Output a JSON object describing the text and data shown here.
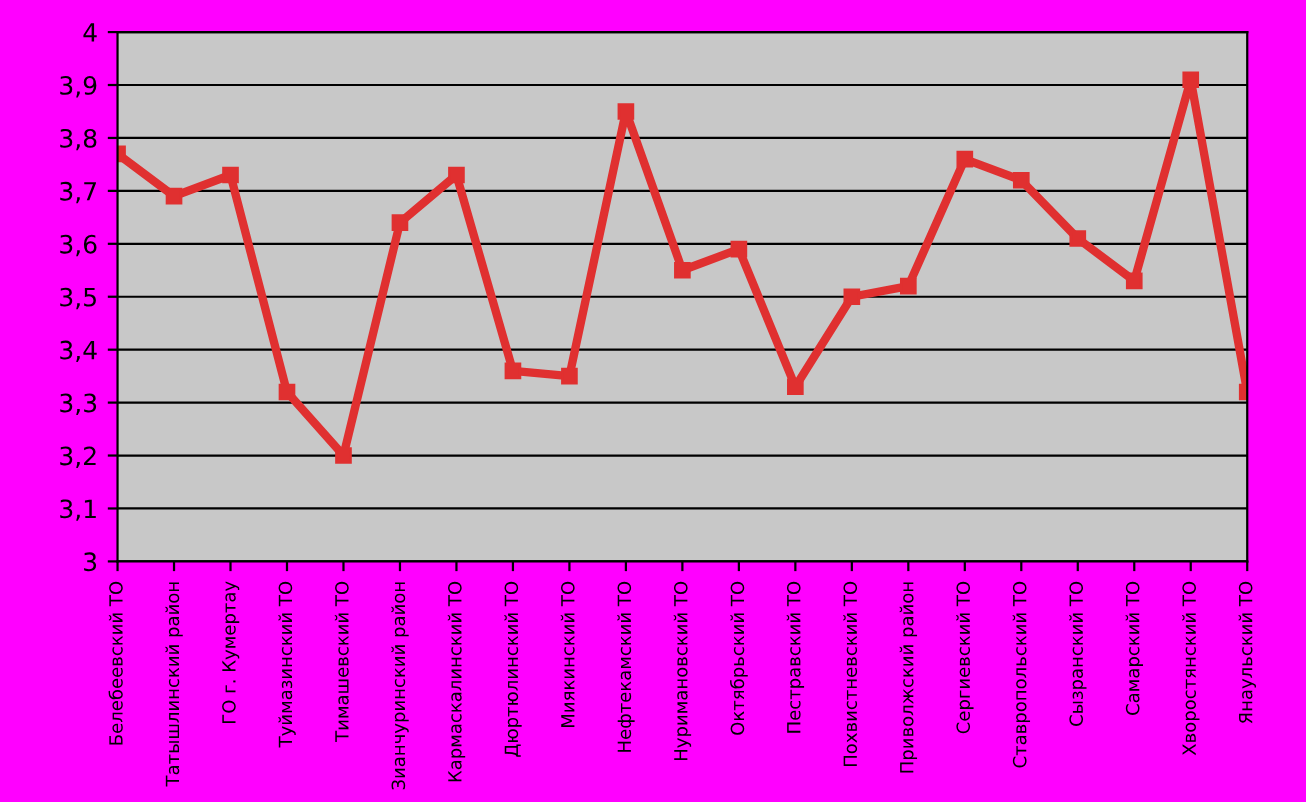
{
  "chart_data": {
    "type": "line",
    "categories": [
      "Белебеевский ТО",
      "Татышлинский район",
      "ГО г. Кумертау",
      "Туймазинский ТО",
      "Тимашевский ТО",
      "Зианчуринский район",
      "Кармаскалинский ТО",
      "Дюртюлинский ТО",
      "Миякинский ТО",
      "Нефтекамский ТО",
      "Нуримановский ТО",
      "Октябрьский ТО",
      "Пестравский ТО",
      "Похвистневский ТО",
      "Приволжский район",
      "Сергиевский ТО",
      "Ставропольский ТО",
      "Сызранский ТО",
      "Самарский ТО",
      "Хворостянский ТО",
      "Янаульский ТО"
    ],
    "series": [
      {
        "color": "#e03030",
        "values": [
          3.77,
          3.69,
          3.73,
          3.32,
          3.2,
          3.64,
          3.73,
          3.36,
          3.35,
          3.85,
          3.55,
          3.59,
          3.33,
          3.5,
          3.52,
          3.76,
          3.72,
          3.61,
          3.53,
          3.91,
          3.32
        ]
      }
    ],
    "ylim": [
      3,
      4
    ],
    "yticks": [
      3,
      {
        "value": 3.1,
        "label": "3,1"
      },
      {
        "value": 3.2,
        "label": "3,2"
      },
      {
        "value": 3.3,
        "label": "3,3"
      },
      {
        "value": 3.4,
        "label": "3,4"
      },
      {
        "value": 3.5,
        "label": "3,5"
      },
      {
        "value": 3.6,
        "label": "3,6"
      },
      {
        "value": 3.7,
        "label": "3,7"
      },
      {
        "value": 3.8,
        "label": "3,8"
      },
      {
        "value": 3.9,
        "label": "3,9"
      },
      4
    ],
    "grid": "y",
    "marker": "square",
    "line_style": "solid",
    "legend": false
  }
}
